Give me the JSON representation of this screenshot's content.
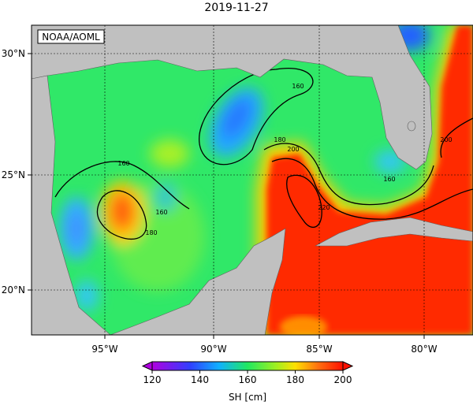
{
  "header": {
    "title": "2019-11-27"
  },
  "map": {
    "badge": "NOAA/AOML",
    "lon_ticks": [
      "95°W",
      "90°W",
      "85°W",
      "80°W"
    ],
    "lat_ticks": [
      "30°N",
      "25°N",
      "20°N"
    ],
    "contour_labels": [
      160,
      160,
      160,
      160,
      180,
      180,
      200,
      200,
      220
    ]
  },
  "colorbar": {
    "ticks": [
      120,
      140,
      160,
      180,
      200
    ],
    "label": "SH [cm]"
  }
}
